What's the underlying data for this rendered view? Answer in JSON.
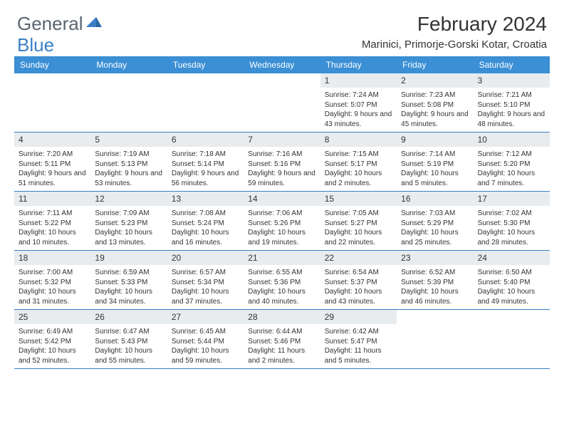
{
  "logo": {
    "text1": "General",
    "text2": "Blue"
  },
  "title": "February 2024",
  "location": "Marinici, Primorje-Gorski Kotar, Croatia",
  "colors": {
    "header_bg": "#3b8fd4",
    "header_text": "#ffffff",
    "daynum_bg": "#e8ecef",
    "border": "#3b7fc4",
    "body_text": "#333333",
    "logo_gray": "#5a6570",
    "logo_blue": "#3b7fc4",
    "page_bg": "#ffffff"
  },
  "day_names": [
    "Sunday",
    "Monday",
    "Tuesday",
    "Wednesday",
    "Thursday",
    "Friday",
    "Saturday"
  ],
  "weeks": [
    [
      null,
      null,
      null,
      null,
      {
        "n": "1",
        "sr": "Sunrise: 7:24 AM",
        "ss": "Sunset: 5:07 PM",
        "dl": "Daylight: 9 hours and 43 minutes."
      },
      {
        "n": "2",
        "sr": "Sunrise: 7:23 AM",
        "ss": "Sunset: 5:08 PM",
        "dl": "Daylight: 9 hours and 45 minutes."
      },
      {
        "n": "3",
        "sr": "Sunrise: 7:21 AM",
        "ss": "Sunset: 5:10 PM",
        "dl": "Daylight: 9 hours and 48 minutes."
      }
    ],
    [
      {
        "n": "4",
        "sr": "Sunrise: 7:20 AM",
        "ss": "Sunset: 5:11 PM",
        "dl": "Daylight: 9 hours and 51 minutes."
      },
      {
        "n": "5",
        "sr": "Sunrise: 7:19 AM",
        "ss": "Sunset: 5:13 PM",
        "dl": "Daylight: 9 hours and 53 minutes."
      },
      {
        "n": "6",
        "sr": "Sunrise: 7:18 AM",
        "ss": "Sunset: 5:14 PM",
        "dl": "Daylight: 9 hours and 56 minutes."
      },
      {
        "n": "7",
        "sr": "Sunrise: 7:16 AM",
        "ss": "Sunset: 5:16 PM",
        "dl": "Daylight: 9 hours and 59 minutes."
      },
      {
        "n": "8",
        "sr": "Sunrise: 7:15 AM",
        "ss": "Sunset: 5:17 PM",
        "dl": "Daylight: 10 hours and 2 minutes."
      },
      {
        "n": "9",
        "sr": "Sunrise: 7:14 AM",
        "ss": "Sunset: 5:19 PM",
        "dl": "Daylight: 10 hours and 5 minutes."
      },
      {
        "n": "10",
        "sr": "Sunrise: 7:12 AM",
        "ss": "Sunset: 5:20 PM",
        "dl": "Daylight: 10 hours and 7 minutes."
      }
    ],
    [
      {
        "n": "11",
        "sr": "Sunrise: 7:11 AM",
        "ss": "Sunset: 5:22 PM",
        "dl": "Daylight: 10 hours and 10 minutes."
      },
      {
        "n": "12",
        "sr": "Sunrise: 7:09 AM",
        "ss": "Sunset: 5:23 PM",
        "dl": "Daylight: 10 hours and 13 minutes."
      },
      {
        "n": "13",
        "sr": "Sunrise: 7:08 AM",
        "ss": "Sunset: 5:24 PM",
        "dl": "Daylight: 10 hours and 16 minutes."
      },
      {
        "n": "14",
        "sr": "Sunrise: 7:06 AM",
        "ss": "Sunset: 5:26 PM",
        "dl": "Daylight: 10 hours and 19 minutes."
      },
      {
        "n": "15",
        "sr": "Sunrise: 7:05 AM",
        "ss": "Sunset: 5:27 PM",
        "dl": "Daylight: 10 hours and 22 minutes."
      },
      {
        "n": "16",
        "sr": "Sunrise: 7:03 AM",
        "ss": "Sunset: 5:29 PM",
        "dl": "Daylight: 10 hours and 25 minutes."
      },
      {
        "n": "17",
        "sr": "Sunrise: 7:02 AM",
        "ss": "Sunset: 5:30 PM",
        "dl": "Daylight: 10 hours and 28 minutes."
      }
    ],
    [
      {
        "n": "18",
        "sr": "Sunrise: 7:00 AM",
        "ss": "Sunset: 5:32 PM",
        "dl": "Daylight: 10 hours and 31 minutes."
      },
      {
        "n": "19",
        "sr": "Sunrise: 6:59 AM",
        "ss": "Sunset: 5:33 PM",
        "dl": "Daylight: 10 hours and 34 minutes."
      },
      {
        "n": "20",
        "sr": "Sunrise: 6:57 AM",
        "ss": "Sunset: 5:34 PM",
        "dl": "Daylight: 10 hours and 37 minutes."
      },
      {
        "n": "21",
        "sr": "Sunrise: 6:55 AM",
        "ss": "Sunset: 5:36 PM",
        "dl": "Daylight: 10 hours and 40 minutes."
      },
      {
        "n": "22",
        "sr": "Sunrise: 6:54 AM",
        "ss": "Sunset: 5:37 PM",
        "dl": "Daylight: 10 hours and 43 minutes."
      },
      {
        "n": "23",
        "sr": "Sunrise: 6:52 AM",
        "ss": "Sunset: 5:39 PM",
        "dl": "Daylight: 10 hours and 46 minutes."
      },
      {
        "n": "24",
        "sr": "Sunrise: 6:50 AM",
        "ss": "Sunset: 5:40 PM",
        "dl": "Daylight: 10 hours and 49 minutes."
      }
    ],
    [
      {
        "n": "25",
        "sr": "Sunrise: 6:49 AM",
        "ss": "Sunset: 5:42 PM",
        "dl": "Daylight: 10 hours and 52 minutes."
      },
      {
        "n": "26",
        "sr": "Sunrise: 6:47 AM",
        "ss": "Sunset: 5:43 PM",
        "dl": "Daylight: 10 hours and 55 minutes."
      },
      {
        "n": "27",
        "sr": "Sunrise: 6:45 AM",
        "ss": "Sunset: 5:44 PM",
        "dl": "Daylight: 10 hours and 59 minutes."
      },
      {
        "n": "28",
        "sr": "Sunrise: 6:44 AM",
        "ss": "Sunset: 5:46 PM",
        "dl": "Daylight: 11 hours and 2 minutes."
      },
      {
        "n": "29",
        "sr": "Sunrise: 6:42 AM",
        "ss": "Sunset: 5:47 PM",
        "dl": "Daylight: 11 hours and 5 minutes."
      },
      null,
      null
    ]
  ]
}
